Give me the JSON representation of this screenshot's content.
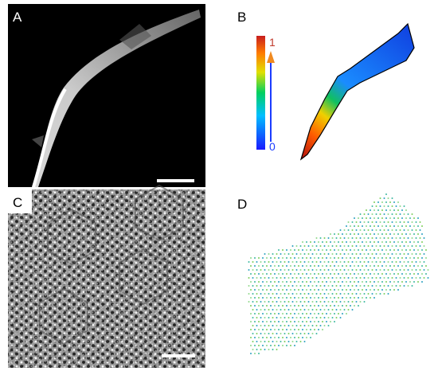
{
  "panels": [
    {
      "label": "A"
    },
    {
      "label": "B",
      "colorbar": {
        "max_label": "1",
        "min_label": "0"
      }
    },
    {
      "label": "C"
    },
    {
      "label": "D"
    }
  ]
}
